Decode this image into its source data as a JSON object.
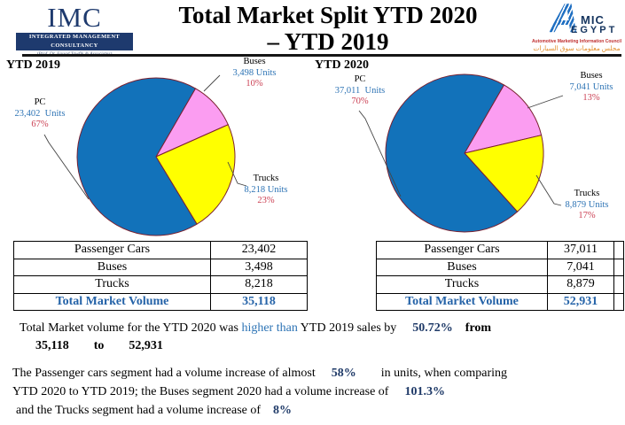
{
  "header": {
    "imc": {
      "acronym": "IMC",
      "banner": "Integrated Management Consultancy",
      "tagline": "(Prof. Dr. Fouad Tawfik & Associates)"
    },
    "title": {
      "line1": "Total Market Split YTD 2020",
      "line2": "– YTD 2019"
    },
    "amic": {
      "a": "A",
      "mic": "MIC",
      "egypt": "EGYPT",
      "tagline_en": "Automotive Marketing Information Council",
      "tagline_ar": "مجلس معلومات سوق السيارات"
    }
  },
  "charts": {
    "ytd2019_title": "YTD 2019",
    "ytd2020_title": "YTD 2020"
  },
  "chart_data": [
    {
      "type": "pie",
      "title": "YTD 2019",
      "start_angle_deg": 30,
      "total_units": 35118,
      "legend_position": "callout-labels",
      "slices": [
        {
          "label": "Buses",
          "value": 3498,
          "percent": 10,
          "units_label": "3,498 Units",
          "pct_label": "10%",
          "color": "#fb9df1"
        },
        {
          "label": "Trucks",
          "value": 8218,
          "percent": 23,
          "units_label": "8,218 Units",
          "pct_label": "23%",
          "color": "#ffff00"
        },
        {
          "label": "PC",
          "value": 23402,
          "percent": 67,
          "units_label": "23,402  Units",
          "pct_label": "67%",
          "color": "#1272ba"
        }
      ]
    },
    {
      "type": "pie",
      "title": "YTD 2020",
      "start_angle_deg": 30,
      "total_units": 52931,
      "legend_position": "callout-labels",
      "slices": [
        {
          "label": "Buses",
          "value": 7041,
          "percent": 13,
          "units_label": "7,041 Units",
          "pct_label": "13%",
          "color": "#fb9df1"
        },
        {
          "label": "Trucks",
          "value": 8879,
          "percent": 17,
          "units_label": "8,879 Units",
          "pct_label": "17%",
          "color": "#ffff00"
        },
        {
          "label": "PC",
          "value": 37011,
          "percent": 70,
          "units_label": "37,011  Units",
          "pct_label": "70%",
          "color": "#1272ba"
        }
      ]
    }
  ],
  "tables": {
    "ytd2019": {
      "rows": [
        {
          "label": "Passenger Cars",
          "value": "23,402"
        },
        {
          "label": "Buses",
          "value": "3,498"
        },
        {
          "label": "Trucks",
          "value": "8,218"
        },
        {
          "label": "Total Market Volume",
          "value": "35,118"
        }
      ]
    },
    "ytd2020": {
      "rows": [
        {
          "label": "Passenger Cars",
          "value": "37,011"
        },
        {
          "label": "Buses",
          "value": "7,041"
        },
        {
          "label": "Trucks",
          "value": "8,879"
        },
        {
          "label": "Total Market Volume",
          "value": "52,931"
        }
      ]
    }
  },
  "summary": {
    "p1": {
      "t1": "Total Market volume for the YTD 2020 was ",
      "t2": "higher than",
      "t3": " YTD 2019 sales by",
      "v1": "50.72%",
      "t4": "from",
      "n1": "35,118",
      "t5": "to",
      "n2": "52,931"
    },
    "p2": {
      "t1": "The Passenger cars segment had a volume increase of almost",
      "v1": "58%",
      "t2": "in units, when comparing",
      "t3": "YTD 2020 to YTD 2019; the Buses segment 2020 had a volume increase of",
      "v2": "101.3%",
      "t4": "and the Trucks segment had a volume increase of",
      "v3": "8%"
    }
  },
  "colors": {
    "pie_blue": "#1272ba",
    "pie_pink": "#fb9df1",
    "pie_yellow": "#ffff00",
    "slice_border": "#7a1f2e",
    "units_blue": "#2e74b5",
    "percent_red": "#cb4154",
    "navy_number": "#1f3a68",
    "table_total_blue": "#2563a8",
    "banner_navy": "#1e3a6e"
  }
}
